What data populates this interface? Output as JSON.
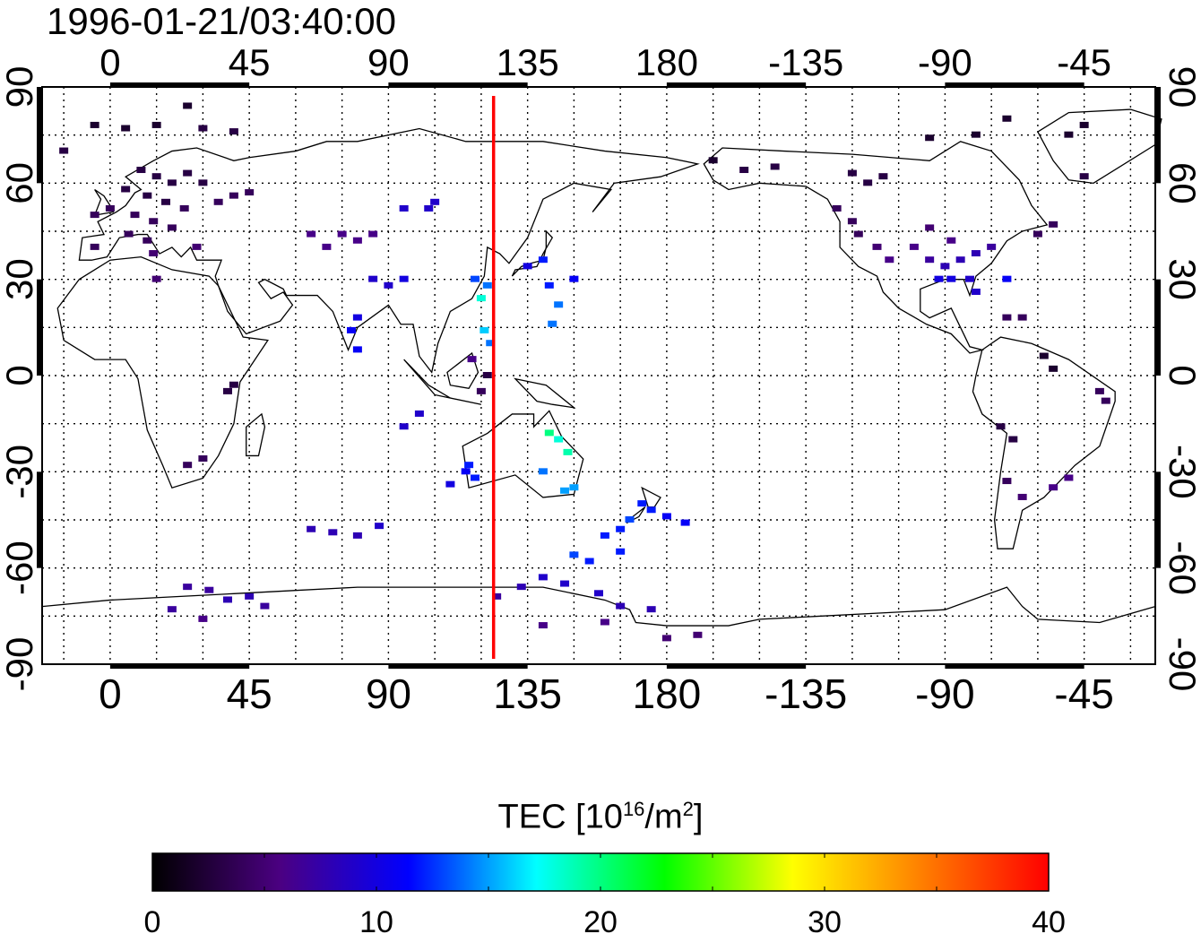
{
  "title": "1996-01-21/03:40:00",
  "map": {
    "lon_ticks_bottom": [
      "0",
      "45",
      "90",
      "135",
      "180",
      "-135",
      "-90",
      "-45"
    ],
    "lon_ticks_top": [
      "0",
      "45",
      "90",
      "135",
      "180",
      "-135",
      "-90",
      "-45"
    ],
    "lat_ticks_left": [
      "90",
      "60",
      "30",
      "0",
      "-30",
      "-60",
      "-90"
    ],
    "lat_ticks_right": [
      "90",
      "60",
      "30",
      "0",
      "-30",
      "-60",
      "-90"
    ],
    "lon_range": [
      -22,
      338
    ],
    "lat_range": [
      -90,
      90
    ],
    "grid": "dotted",
    "terminator_lon": 124,
    "terminator_color": "#ff0000"
  },
  "colorbar": {
    "label_prefix": "TEC  [10",
    "label_exp": "16",
    "label_mid": "/m",
    "label_exp2": "2",
    "label_suffix": "]",
    "ticks": [
      "0",
      "10",
      "20",
      "30",
      "40"
    ],
    "range": [
      0,
      40
    ],
    "colors": [
      "#000000",
      "#4b0082",
      "#0000ff",
      "#00ffff",
      "#00ff00",
      "#ffff00",
      "#ff8000",
      "#ff0000"
    ]
  },
  "chart_data": {
    "type": "scatter",
    "title": "1996-01-21/03:40:00",
    "xlabel": "",
    "ylabel": "",
    "xlim": [
      -22,
      338
    ],
    "ylim": [
      -90,
      90
    ],
    "value_label": "TEC [10^16/m^2]",
    "value_range": [
      0,
      40
    ],
    "points": [
      {
        "lon": -5,
        "lat": 78,
        "tec": 2
      },
      {
        "lon": 5,
        "lat": 77,
        "tec": 2
      },
      {
        "lon": 15,
        "lat": 78,
        "tec": 2
      },
      {
        "lon": 25,
        "lat": 84,
        "tec": 2
      },
      {
        "lon": 30,
        "lat": 77,
        "tec": 3
      },
      {
        "lon": 40,
        "lat": 76,
        "tec": 3
      },
      {
        "lon": -15,
        "lat": 70,
        "tec": 3
      },
      {
        "lon": 10,
        "lat": 64,
        "tec": 3
      },
      {
        "lon": 15,
        "lat": 62,
        "tec": 3
      },
      {
        "lon": 20,
        "lat": 60,
        "tec": 3
      },
      {
        "lon": 25,
        "lat": 63,
        "tec": 3
      },
      {
        "lon": 30,
        "lat": 60,
        "tec": 3
      },
      {
        "lon": 5,
        "lat": 58,
        "tec": 3
      },
      {
        "lon": 12,
        "lat": 56,
        "tec": 3
      },
      {
        "lon": 18,
        "lat": 54,
        "tec": 3
      },
      {
        "lon": 24,
        "lat": 52,
        "tec": 4
      },
      {
        "lon": 0,
        "lat": 52,
        "tec": 4
      },
      {
        "lon": -5,
        "lat": 50,
        "tec": 4
      },
      {
        "lon": 8,
        "lat": 50,
        "tec": 4
      },
      {
        "lon": 14,
        "lat": 48,
        "tec": 4
      },
      {
        "lon": 20,
        "lat": 46,
        "tec": 4
      },
      {
        "lon": 6,
        "lat": 44,
        "tec": 4
      },
      {
        "lon": 12,
        "lat": 42,
        "tec": 4
      },
      {
        "lon": -5,
        "lat": 40,
        "tec": 4
      },
      {
        "lon": 14,
        "lat": 38,
        "tec": 5
      },
      {
        "lon": 28,
        "lat": 40,
        "tec": 5
      },
      {
        "lon": 40,
        "lat": 56,
        "tec": 4
      },
      {
        "lon": 45,
        "lat": 57,
        "tec": 4
      },
      {
        "lon": 35,
        "lat": 54,
        "tec": 4
      },
      {
        "lon": 15,
        "lat": 30,
        "tec": 5
      },
      {
        "lon": 75,
        "lat": 44,
        "tec": 6
      },
      {
        "lon": 80,
        "lat": 42,
        "tec": 6
      },
      {
        "lon": 70,
        "lat": 40,
        "tec": 6
      },
      {
        "lon": 65,
        "lat": 44,
        "tec": 6
      },
      {
        "lon": 85,
        "lat": 44,
        "tec": 6
      },
      {
        "lon": 95,
        "lat": 52,
        "tec": 9
      },
      {
        "lon": 105,
        "lat": 54,
        "tec": 9
      },
      {
        "lon": 103,
        "lat": 52,
        "tec": 9
      },
      {
        "lon": 85,
        "lat": 30,
        "tec": 9
      },
      {
        "lon": 90,
        "lat": 28,
        "tec": 9
      },
      {
        "lon": 95,
        "lat": 30,
        "tec": 10
      },
      {
        "lon": 80,
        "lat": 18,
        "tec": 10
      },
      {
        "lon": 78,
        "lat": 14,
        "tec": 11
      },
      {
        "lon": 80,
        "lat": 8,
        "tec": 11
      },
      {
        "lon": 118,
        "lat": 30,
        "tec": 13
      },
      {
        "lon": 120,
        "lat": 24,
        "tec": 18
      },
      {
        "lon": 121,
        "lat": 14,
        "tec": 16
      },
      {
        "lon": 123,
        "lat": 10,
        "tec": 14
      },
      {
        "lon": 117,
        "lat": 5,
        "tec": 6
      },
      {
        "lon": 122,
        "lat": 28,
        "tec": 14
      },
      {
        "lon": 140,
        "lat": 36,
        "tec": 12
      },
      {
        "lon": 142,
        "lat": 28,
        "tec": 12
      },
      {
        "lon": 145,
        "lat": 22,
        "tec": 14
      },
      {
        "lon": 143,
        "lat": 16,
        "tec": 14
      },
      {
        "lon": 135,
        "lat": 34,
        "tec": 10
      },
      {
        "lon": 150,
        "lat": 30,
        "tec": 11
      },
      {
        "lon": 122,
        "lat": 0,
        "tec": 3
      },
      {
        "lon": 120,
        "lat": -5,
        "tec": 4
      },
      {
        "lon": 40,
        "lat": -3,
        "tec": 3
      },
      {
        "lon": 38,
        "lat": -5,
        "tec": 3
      },
      {
        "lon": 25,
        "lat": -28,
        "tec": 4
      },
      {
        "lon": 30,
        "lat": -26,
        "tec": 4
      },
      {
        "lon": 100,
        "lat": -12,
        "tec": 9
      },
      {
        "lon": 95,
        "lat": -16,
        "tec": 9
      },
      {
        "lon": 115,
        "lat": -30,
        "tec": 11
      },
      {
        "lon": 118,
        "lat": -32,
        "tec": 12
      },
      {
        "lon": 116,
        "lat": -28,
        "tec": 12
      },
      {
        "lon": 110,
        "lat": -34,
        "tec": 10
      },
      {
        "lon": 142,
        "lat": -18,
        "tec": 20
      },
      {
        "lon": 145,
        "lat": -20,
        "tec": 18
      },
      {
        "lon": 148,
        "lat": -24,
        "tec": 19
      },
      {
        "lon": 140,
        "lat": -30,
        "tec": 14
      },
      {
        "lon": 147,
        "lat": -36,
        "tec": 15
      },
      {
        "lon": 150,
        "lat": -35,
        "tec": 15
      },
      {
        "lon": 172,
        "lat": -40,
        "tec": 12
      },
      {
        "lon": 175,
        "lat": -42,
        "tec": 12
      },
      {
        "lon": 168,
        "lat": -45,
        "tec": 13
      },
      {
        "lon": 165,
        "lat": -48,
        "tec": 12
      },
      {
        "lon": 180,
        "lat": -44,
        "tec": 11
      },
      {
        "lon": 186,
        "lat": -46,
        "tec": 11
      },
      {
        "lon": 165,
        "lat": -55,
        "tec": 12
      },
      {
        "lon": 160,
        "lat": -50,
        "tec": 12
      },
      {
        "lon": 150,
        "lat": -56,
        "tec": 13
      },
      {
        "lon": 155,
        "lat": -58,
        "tec": 12
      },
      {
        "lon": 65,
        "lat": -48,
        "tec": 8
      },
      {
        "lon": 72,
        "lat": -49,
        "tec": 8
      },
      {
        "lon": 80,
        "lat": -50,
        "tec": 8
      },
      {
        "lon": 87,
        "lat": -47,
        "tec": 9
      },
      {
        "lon": 25,
        "lat": -66,
        "tec": 7
      },
      {
        "lon": 32,
        "lat": -67,
        "tec": 7
      },
      {
        "lon": 38,
        "lat": -70,
        "tec": 8
      },
      {
        "lon": 45,
        "lat": -69,
        "tec": 8
      },
      {
        "lon": 50,
        "lat": -72,
        "tec": 7
      },
      {
        "lon": 30,
        "lat": -76,
        "tec": 6
      },
      {
        "lon": 20,
        "lat": -73,
        "tec": 7
      },
      {
        "lon": 125,
        "lat": -69,
        "tec": 7
      },
      {
        "lon": 133,
        "lat": -66,
        "tec": 8
      },
      {
        "lon": 140,
        "lat": -63,
        "tec": 9
      },
      {
        "lon": 147,
        "lat": -65,
        "tec": 9
      },
      {
        "lon": 158,
        "lat": -68,
        "tec": 9
      },
      {
        "lon": 165,
        "lat": -72,
        "tec": 8
      },
      {
        "lon": 175,
        "lat": -73,
        "tec": 8
      },
      {
        "lon": 140,
        "lat": -78,
        "tec": 6
      },
      {
        "lon": 160,
        "lat": -77,
        "tec": 6
      },
      {
        "lon": 180,
        "lat": -82,
        "tec": 5
      },
      {
        "lon": 190,
        "lat": -81,
        "tec": 5
      },
      {
        "lon": -165,
        "lat": 67,
        "tec": 2
      },
      {
        "lon": -155,
        "lat": 64,
        "tec": 3
      },
      {
        "lon": -145,
        "lat": 65,
        "tec": 3
      },
      {
        "lon": -120,
        "lat": 63,
        "tec": 3
      },
      {
        "lon": -115,
        "lat": 60,
        "tec": 3
      },
      {
        "lon": -110,
        "lat": 62,
        "tec": 3
      },
      {
        "lon": -125,
        "lat": 52,
        "tec": 4
      },
      {
        "lon": -120,
        "lat": 48,
        "tec": 4
      },
      {
        "lon": -118,
        "lat": 44,
        "tec": 4
      },
      {
        "lon": -112,
        "lat": 40,
        "tec": 5
      },
      {
        "lon": -108,
        "lat": 36,
        "tec": 6
      },
      {
        "lon": -100,
        "lat": 40,
        "tec": 6
      },
      {
        "lon": -95,
        "lat": 36,
        "tec": 7
      },
      {
        "lon": -90,
        "lat": 34,
        "tec": 8
      },
      {
        "lon": -85,
        "lat": 36,
        "tec": 8
      },
      {
        "lon": -80,
        "lat": 38,
        "tec": 8
      },
      {
        "lon": -75,
        "lat": 40,
        "tec": 7
      },
      {
        "lon": -88,
        "lat": 42,
        "tec": 6
      },
      {
        "lon": -95,
        "lat": 46,
        "tec": 5
      },
      {
        "lon": -82,
        "lat": 30,
        "tec": 9
      },
      {
        "lon": -88,
        "lat": 30,
        "tec": 10
      },
      {
        "lon": -92,
        "lat": 30,
        "tec": 10
      },
      {
        "lon": -80,
        "lat": 26,
        "tec": 9
      },
      {
        "lon": -70,
        "lat": 30,
        "tec": 11
      },
      {
        "lon": -60,
        "lat": 44,
        "tec": 4
      },
      {
        "lon": -55,
        "lat": 47,
        "tec": 4
      },
      {
        "lon": -50,
        "lat": 75,
        "tec": 2
      },
      {
        "lon": -45,
        "lat": 78,
        "tec": 2
      },
      {
        "lon": -80,
        "lat": 75,
        "tec": 2
      },
      {
        "lon": -70,
        "lat": 80,
        "tec": 2
      },
      {
        "lon": -95,
        "lat": 74,
        "tec": 2
      },
      {
        "lon": -65,
        "lat": 18,
        "tec": 4
      },
      {
        "lon": -70,
        "lat": 18,
        "tec": 4
      },
      {
        "lon": -58,
        "lat": 6,
        "tec": 2
      },
      {
        "lon": -55,
        "lat": 2,
        "tec": 2
      },
      {
        "lon": -40,
        "lat": -5,
        "tec": 4
      },
      {
        "lon": -38,
        "lat": -8,
        "tec": 4
      },
      {
        "lon": -72,
        "lat": -16,
        "tec": 3
      },
      {
        "lon": -68,
        "lat": -20,
        "tec": 3
      },
      {
        "lon": -70,
        "lat": -33,
        "tec": 4
      },
      {
        "lon": -65,
        "lat": -38,
        "tec": 5
      },
      {
        "lon": -55,
        "lat": -35,
        "tec": 6
      },
      {
        "lon": -50,
        "lat": -32,
        "tec": 6
      },
      {
        "lon": -45,
        "lat": 62,
        "tec": 3
      }
    ]
  }
}
